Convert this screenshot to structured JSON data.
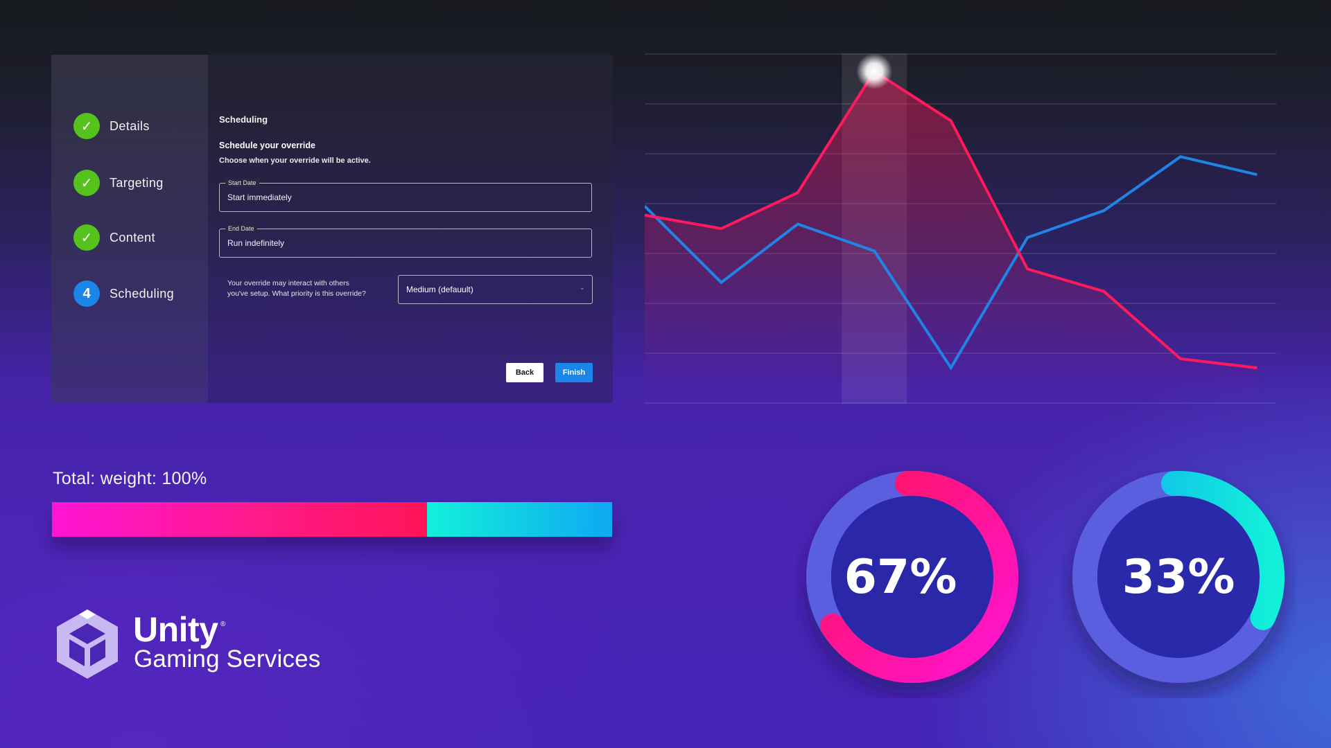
{
  "wizard": {
    "steps": [
      {
        "label": "Details",
        "status": "complete",
        "badge": "✓"
      },
      {
        "label": "Targeting",
        "status": "complete",
        "badge": "✓"
      },
      {
        "label": "Content",
        "status": "complete",
        "badge": "✓"
      },
      {
        "label": "Scheduling",
        "status": "active",
        "badge": "4"
      }
    ],
    "section_title": "Scheduling",
    "form_title": "Schedule your override",
    "form_subtitle": "Choose when your override will be active.",
    "start_date": {
      "legend": "Start Date",
      "value": "Start immediately"
    },
    "end_date": {
      "legend": "End Date",
      "value": "Run indefinitely"
    },
    "priority": {
      "question_line1": "Your override may interact with others",
      "question_line2": "you've setup. What priority is this override?",
      "selected": "Medium (defauult)"
    },
    "back_label": "Back",
    "finish_label": "Finish"
  },
  "chart_data": {
    "type": "line",
    "x": [
      0,
      1,
      2,
      3,
      4,
      5,
      6,
      7,
      8
    ],
    "series": [
      {
        "color": "#ff1a5e",
        "values": [
          4.2,
          3.9,
          4.7,
          7.4,
          6.3,
          3.0,
          2.5,
          1.0,
          0.8
        ]
      },
      {
        "color": "#1f84e6",
        "values": [
          4.4,
          2.7,
          4.0,
          3.4,
          0.8,
          3.7,
          4.3,
          5.5,
          5.1
        ]
      }
    ],
    "ylim": [
      0,
      7.8
    ],
    "xlim": [
      0,
      8.25
    ],
    "grid": true,
    "highlight_x": 3,
    "highlight_series": 0
  },
  "weight": {
    "label": "Total: weight: 100%",
    "segments": [
      {
        "value": 67,
        "color_start": "#ff14d4",
        "color_end": "#ff1458"
      },
      {
        "value": 33,
        "color_start": "#12f0d9",
        "color_end": "#0fa8f2"
      }
    ]
  },
  "donuts": [
    {
      "value": 67,
      "label": "67%",
      "color_start": "#ff14d4",
      "color_end": "#ff1458"
    },
    {
      "value": 33,
      "label": "33%",
      "color_start": "#12f0d9",
      "color_end": "#0fa8f2"
    }
  ],
  "brand": {
    "name": "Unity",
    "registered": "®",
    "tagline": "Gaming Services"
  }
}
